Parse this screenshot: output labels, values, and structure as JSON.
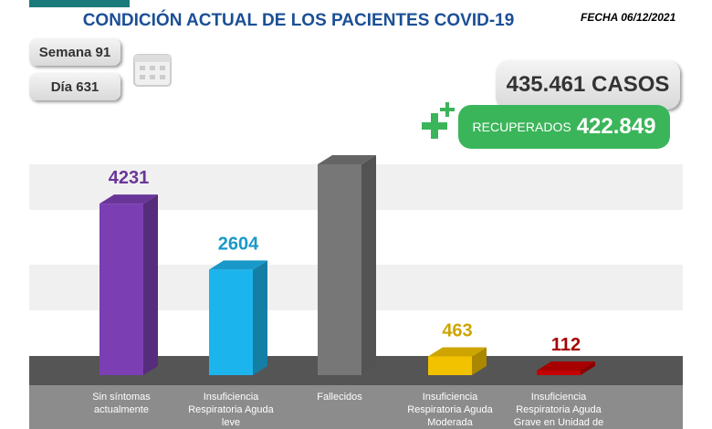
{
  "header": {
    "title": "CONDICIÓN ACTUAL DE LOS PACIENTES COVID-19",
    "date": "FECHA 06/12/2021",
    "week": "Semana 91",
    "day": "Día 631",
    "cases": "435.461 CASOS",
    "recovered_label": "RECUPERADOS",
    "recovered_value": "422.849"
  },
  "chart_data": {
    "type": "bar",
    "categories": [
      "Sin síntomas actualmente",
      "Insuficiencia Respiratoria Aguda leve",
      "Fallecidos",
      "Insuficiencia Respiratoria Aguda Moderada",
      "Insuficiencia Respiratoria Aguda Grave en Unidad de"
    ],
    "values": [
      4231,
      2604,
      5202,
      463,
      112
    ],
    "colors": [
      "#7b3fb3",
      "#1cb4ec",
      "#777777",
      "#f2c200",
      "#c40000"
    ]
  }
}
